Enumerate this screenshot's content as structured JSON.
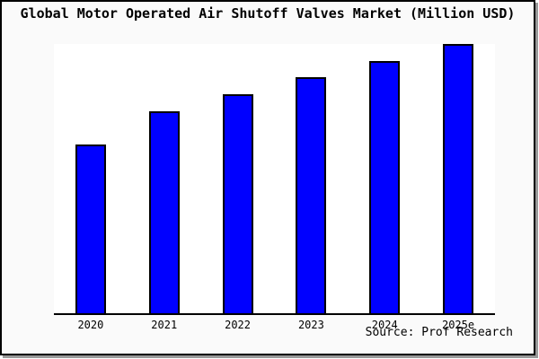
{
  "header": {
    "title": "Global Motor Operated Air Shutoff Valves Market (Million USD)"
  },
  "chart_data": {
    "type": "bar",
    "title": "Global Motor Operated Air Shutoff Valves Market (Million USD)",
    "categories": [
      "2020",
      "2021",
      "2022",
      "2023",
      "2024",
      "2025e"
    ],
    "values": [
      62.8,
      75.1,
      81.5,
      87.7,
      93.7,
      100
    ],
    "values_note": "no y-axis ticks shown; values are a relative index estimated from bar heights with 2025e = 100",
    "xlabel": "",
    "ylabel": "",
    "ylim": [
      0,
      100
    ],
    "grid": false,
    "legend": "none",
    "bar_color": "#0000ff",
    "bar_border_color": "#000000"
  },
  "footer": {
    "source": "Source: Prof Research"
  },
  "colors": {
    "card_background": "#fafafa",
    "plot_background": "#ffffff",
    "border": "#000000",
    "shadow": "#999999",
    "bar_fill": "#0000ff"
  }
}
